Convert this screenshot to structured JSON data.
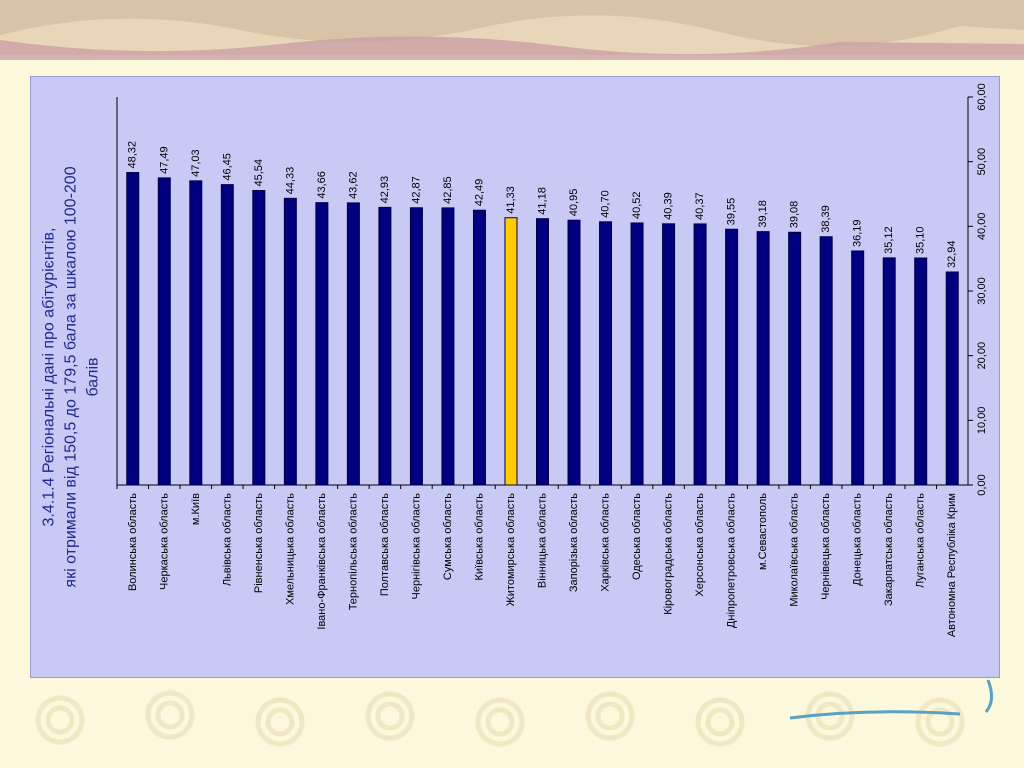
{
  "chart_data": {
    "type": "bar",
    "orientation": "rotated",
    "title": "3.4.1.4 Регіональні дані про абітурієнтів, які отримали від 150,5 до 179,5 бала за шкалою 100-200 балів",
    "title_lines": [
      "3.4.1.4 Регіональні дані про абітурієнтів,",
      "які отримали від 150,5 до 179,5 бала за шкалою 100-200",
      "балів"
    ],
    "categories": [
      "Волинська область",
      "Черкаська область",
      "м.Київ",
      "Львівська область",
      "Рівненська область",
      "Хмельницька область",
      "Івано-Франківська область",
      "Тернопільська область",
      "Полтавська область",
      "Чернігівська область",
      "Сумська область",
      "Київська область",
      "Житомирська область",
      "Вінницька область",
      "Запорізька область",
      "Харківська область",
      "Одеська область",
      "Кіровоградська область",
      "Херсонська область",
      "Дніпропетровська область",
      "м.Севастополь",
      "Миколаївська область",
      "Чернівецька область",
      "Донецька область",
      "Закарпатська область",
      "Луганська область",
      "Автономна Республіка Крим"
    ],
    "values": [
      48.32,
      47.49,
      47.03,
      46.45,
      45.54,
      44.33,
      43.66,
      43.62,
      42.93,
      42.87,
      42.85,
      42.49,
      41.33,
      41.18,
      40.95,
      40.7,
      40.52,
      40.39,
      40.37,
      39.55,
      39.18,
      39.08,
      38.39,
      36.19,
      35.12,
      35.1,
      32.94
    ],
    "value_labels": [
      "48,32",
      "47,49",
      "47,03",
      "46,45",
      "45,54",
      "44,33",
      "43,66",
      "43,62",
      "42,93",
      "42,87",
      "42,85",
      "42,49",
      "41,33",
      "41,18",
      "40,95",
      "40,70",
      "40,52",
      "40,39",
      "40,37",
      "39,55",
      "39,18",
      "39,08",
      "38,39",
      "36,19",
      "35,12",
      "35,10",
      "32,94"
    ],
    "highlight_index": 12,
    "ylim": [
      0,
      60
    ],
    "yticks": [
      0,
      10,
      20,
      30,
      40,
      50,
      60
    ],
    "ytick_labels": [
      "0,00",
      "10,00",
      "20,00",
      "30,00",
      "40,00",
      "50,00",
      "60,00"
    ],
    "grid": false,
    "legend": false,
    "colors": {
      "bar": "#000080",
      "highlight": "#ffcc00",
      "panel": "#c9c9f6",
      "title": "#1f2a8c",
      "text": "#000000"
    }
  }
}
